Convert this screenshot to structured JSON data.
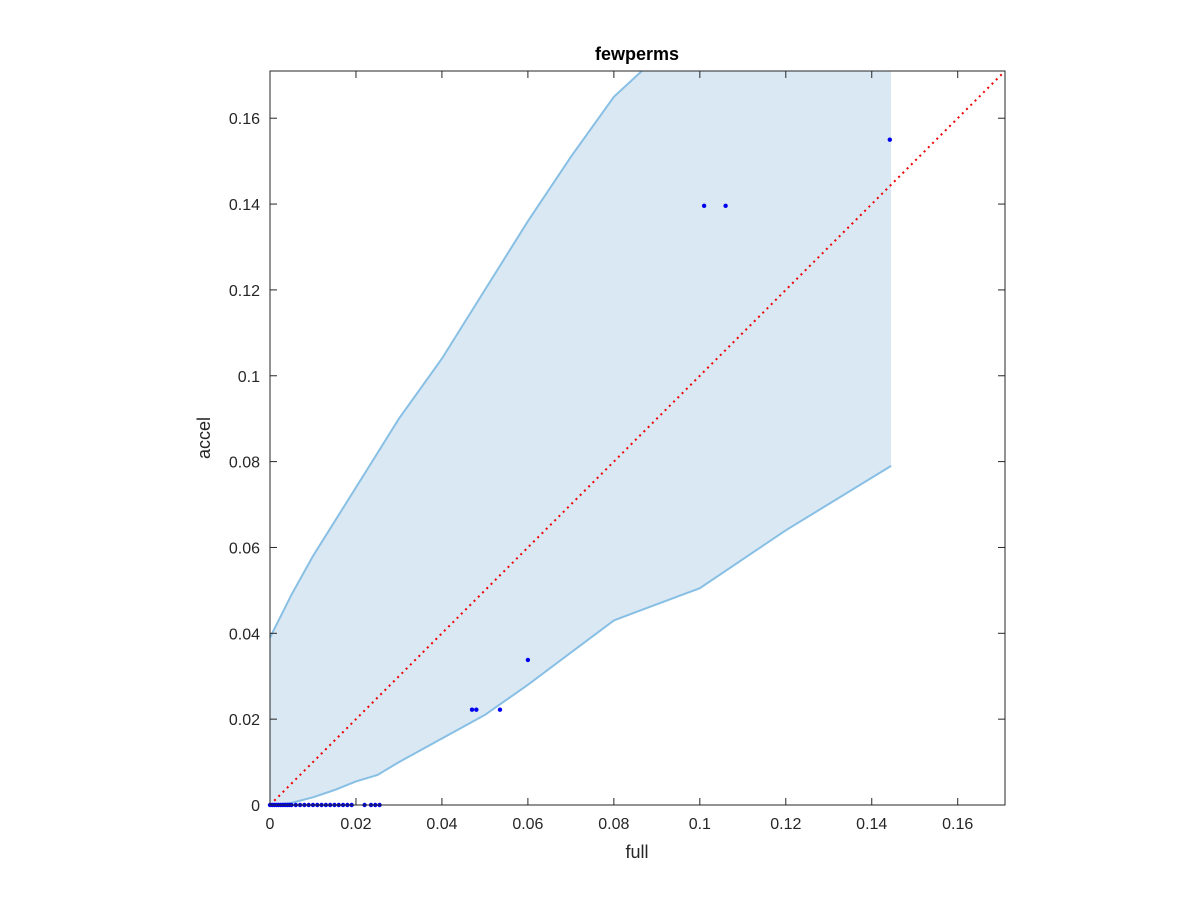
{
  "chart_data": {
    "type": "scatter",
    "title": "fewperms",
    "xlabel": "full",
    "ylabel": "accel",
    "xlim": [
      0,
      0.171
    ],
    "ylim": [
      0,
      0.171
    ],
    "xticks": [
      0,
      0.02,
      0.04,
      0.06,
      0.08,
      0.1,
      0.12,
      0.14,
      0.16
    ],
    "yticks": [
      0,
      0.02,
      0.04,
      0.06,
      0.08,
      0.1,
      0.12,
      0.14,
      0.16
    ],
    "xtick_labels": [
      "0",
      "0.02",
      "0.04",
      "0.06",
      "0.08",
      "0.1",
      "0.12",
      "0.14",
      "0.16"
    ],
    "ytick_labels": [
      "0",
      "0.02",
      "0.04",
      "0.06",
      "0.08",
      "0.1",
      "0.12",
      "0.14",
      "0.16"
    ],
    "grid": false,
    "colors": {
      "points": "#0000ee",
      "band_fill": "#dae8f4",
      "band_edge": "#88bfe4",
      "reference_line": "#ee0000"
    },
    "reference_line": {
      "style": "dotted",
      "x": [
        0,
        0.171
      ],
      "y": [
        0,
        0.171
      ]
    },
    "band": {
      "upper": [
        [
          0,
          0.039
        ],
        [
          0.002,
          0.043
        ],
        [
          0.005,
          0.049
        ],
        [
          0.01,
          0.058
        ],
        [
          0.015,
          0.066
        ],
        [
          0.02,
          0.074
        ],
        [
          0.025,
          0.082
        ],
        [
          0.03,
          0.09
        ],
        [
          0.04,
          0.104
        ],
        [
          0.05,
          0.12
        ],
        [
          0.06,
          0.136
        ],
        [
          0.07,
          0.151
        ],
        [
          0.08,
          0.165
        ],
        [
          0.0865,
          0.171
        ]
      ],
      "lower": [
        [
          0,
          0
        ],
        [
          0.005,
          0.0005
        ],
        [
          0.01,
          0.0018
        ],
        [
          0.015,
          0.0035
        ],
        [
          0.02,
          0.0055
        ],
        [
          0.025,
          0.007
        ],
        [
          0.03,
          0.01
        ],
        [
          0.04,
          0.0155
        ],
        [
          0.05,
          0.021
        ],
        [
          0.06,
          0.028
        ],
        [
          0.07,
          0.0355
        ],
        [
          0.08,
          0.043
        ],
        [
          0.1,
          0.0505
        ],
        [
          0.12,
          0.064
        ],
        [
          0.1445,
          0.079
        ]
      ],
      "right_edge_x": 0.1445
    },
    "points": [
      {
        "x": 0.0,
        "y": 0.0
      },
      {
        "x": 0.0005,
        "y": 0.0
      },
      {
        "x": 0.001,
        "y": 0.0
      },
      {
        "x": 0.0015,
        "y": 0.0
      },
      {
        "x": 0.002,
        "y": 0.0
      },
      {
        "x": 0.0025,
        "y": 0.0
      },
      {
        "x": 0.003,
        "y": 0.0
      },
      {
        "x": 0.0035,
        "y": 0.0
      },
      {
        "x": 0.004,
        "y": 0.0
      },
      {
        "x": 0.0045,
        "y": 0.0
      },
      {
        "x": 0.005,
        "y": 0.0
      },
      {
        "x": 0.006,
        "y": 0.0
      },
      {
        "x": 0.007,
        "y": 0.0
      },
      {
        "x": 0.008,
        "y": 0.0
      },
      {
        "x": 0.009,
        "y": 0.0
      },
      {
        "x": 0.01,
        "y": 0.0
      },
      {
        "x": 0.011,
        "y": 0.0
      },
      {
        "x": 0.012,
        "y": 0.0
      },
      {
        "x": 0.013,
        "y": 0.0
      },
      {
        "x": 0.014,
        "y": 0.0
      },
      {
        "x": 0.015,
        "y": 0.0
      },
      {
        "x": 0.016,
        "y": 0.0
      },
      {
        "x": 0.017,
        "y": 0.0
      },
      {
        "x": 0.018,
        "y": 0.0
      },
      {
        "x": 0.019,
        "y": 0.0
      },
      {
        "x": 0.022,
        "y": 0.0
      },
      {
        "x": 0.0235,
        "y": 0.0
      },
      {
        "x": 0.0245,
        "y": 0.0
      },
      {
        "x": 0.0255,
        "y": 0.0
      },
      {
        "x": 0.047,
        "y": 0.0222
      },
      {
        "x": 0.048,
        "y": 0.0222
      },
      {
        "x": 0.0535,
        "y": 0.0222
      },
      {
        "x": 0.06,
        "y": 0.0338
      },
      {
        "x": 0.101,
        "y": 0.1396
      },
      {
        "x": 0.106,
        "y": 0.1396
      },
      {
        "x": 0.1442,
        "y": 0.155
      }
    ]
  }
}
